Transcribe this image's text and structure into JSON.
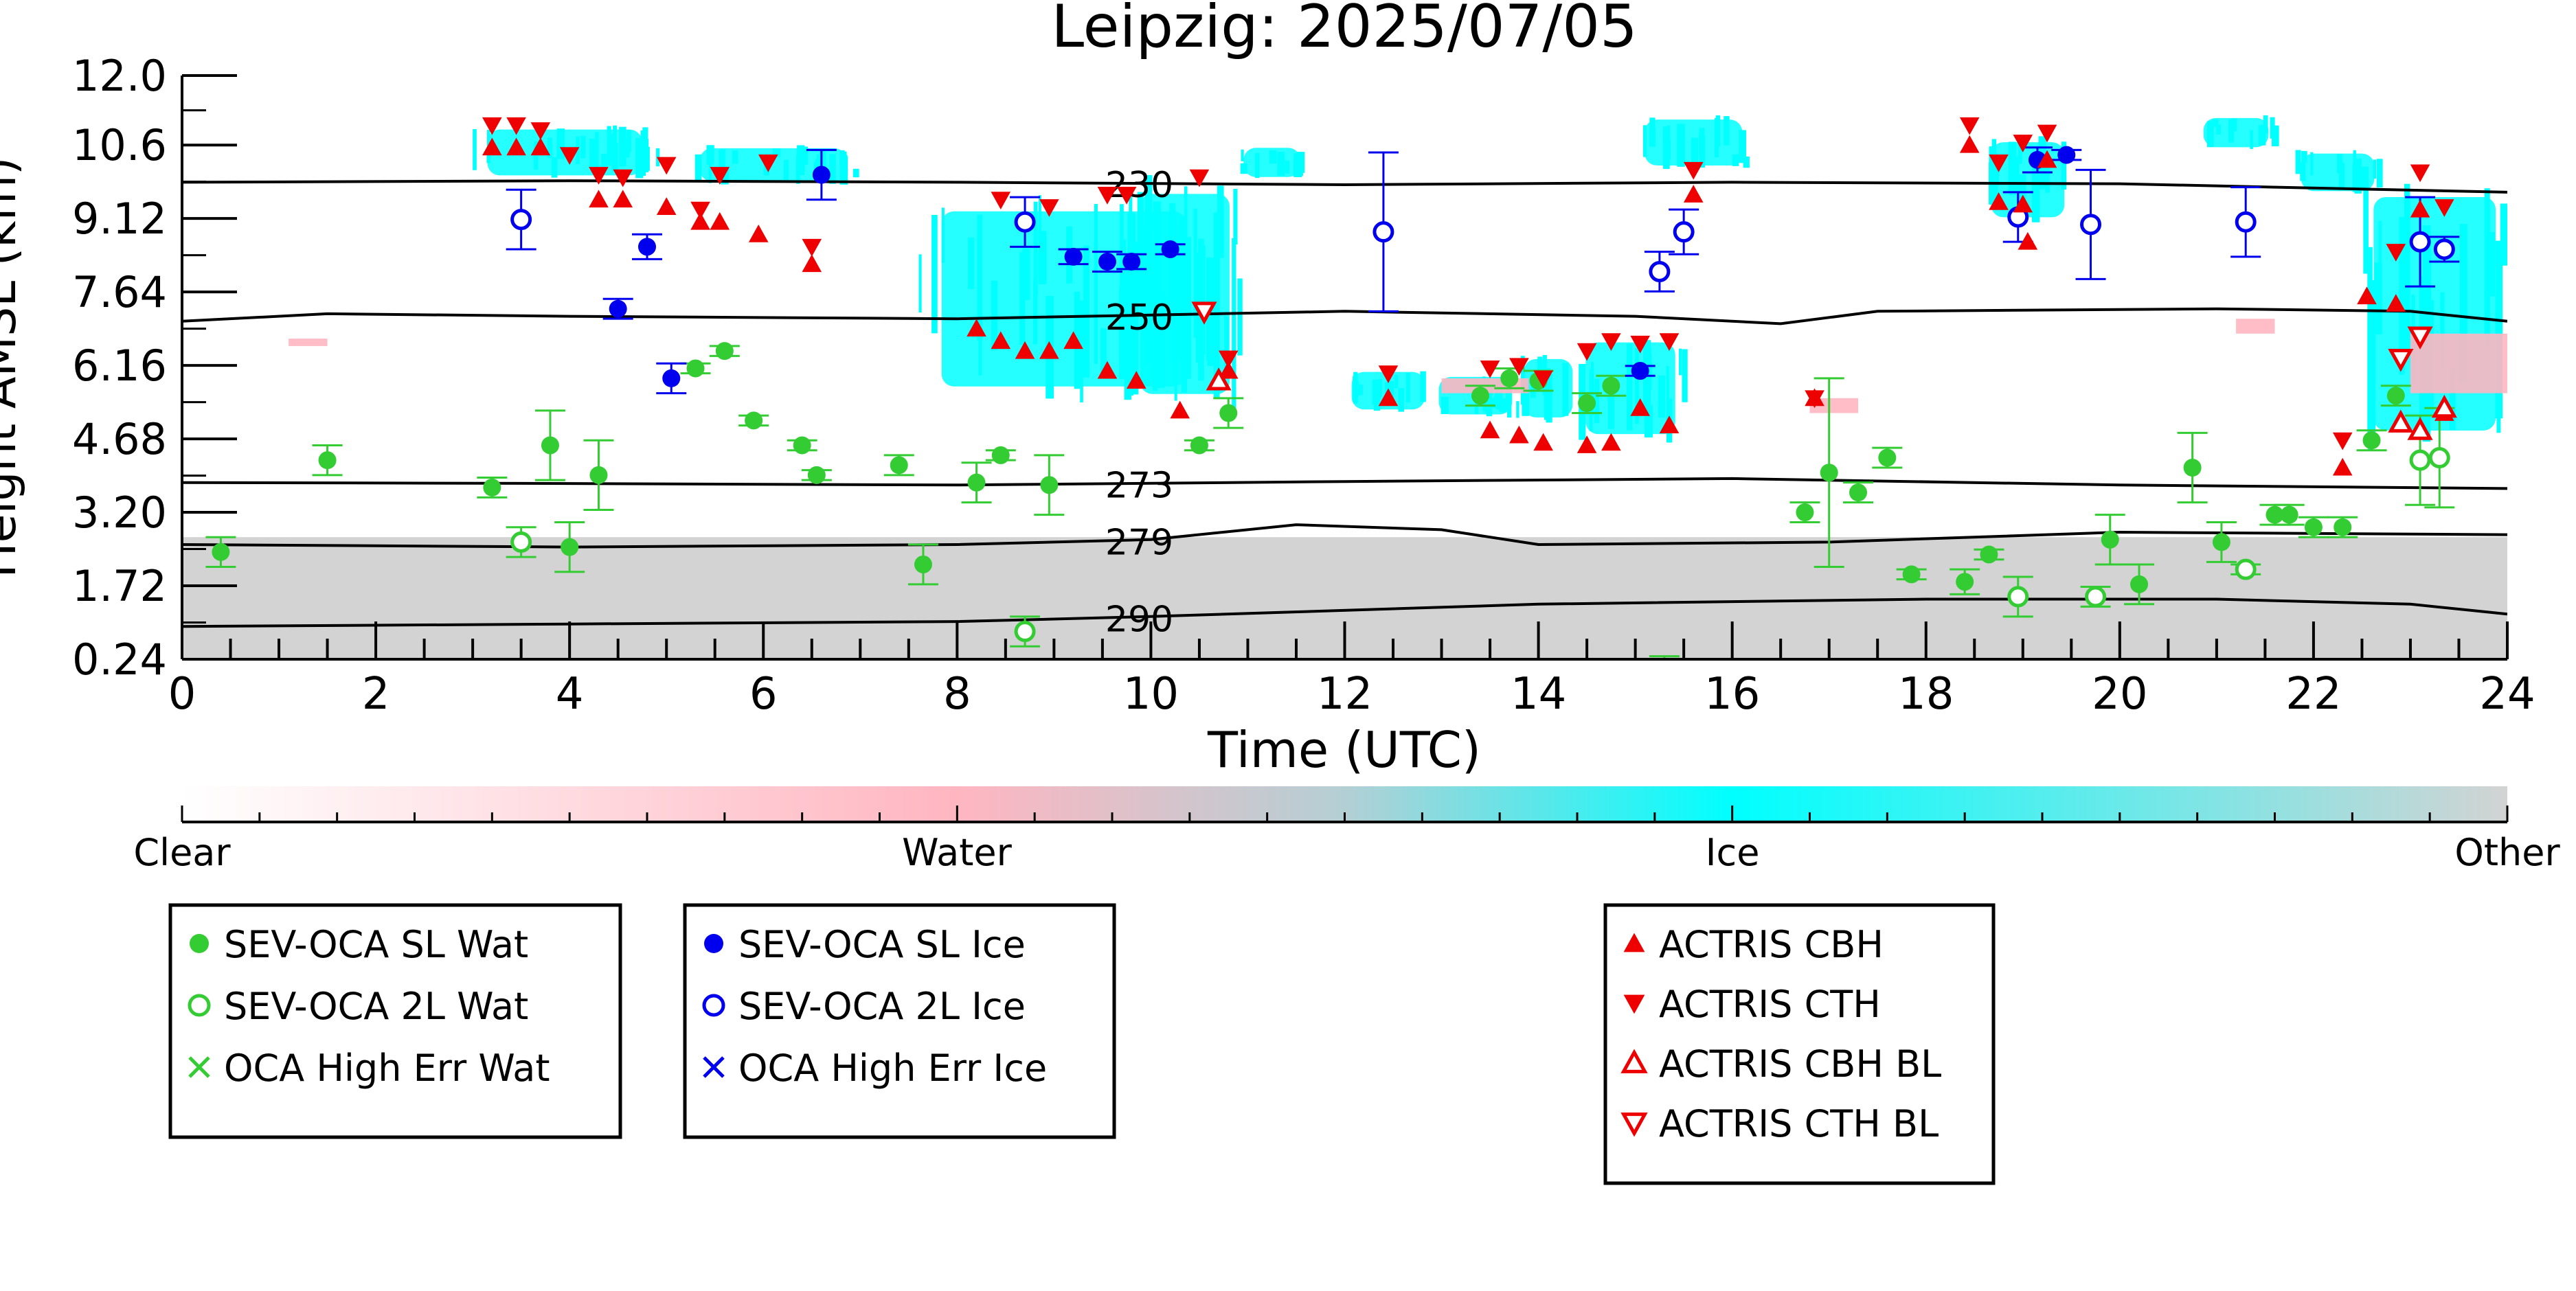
{
  "chart_data": {
    "type": "scatter",
    "title": "Leipzig: 2025/07/05",
    "xlabel": "Time (UTC)",
    "ylabel": "Height AMSL (km)",
    "xlim": [
      0,
      24
    ],
    "ylim": [
      0.24,
      12.0
    ],
    "x_ticks": [
      0,
      2,
      4,
      6,
      8,
      10,
      12,
      14,
      16,
      18,
      20,
      22,
      24
    ],
    "y_ticks": [
      0.24,
      1.72,
      3.2,
      4.68,
      6.16,
      7.64,
      9.12,
      10.6,
      12.0
    ],
    "y_tick_labels": [
      "0.24",
      "1.72",
      "3.20",
      "4.68",
      "6.16",
      "7.64",
      "9.12",
      "10.6",
      "12.0"
    ],
    "grid": false,
    "isotherms": [
      {
        "label": "230",
        "label_x": 9.5,
        "points": [
          [
            0,
            9.85
          ],
          [
            4,
            9.88
          ],
          [
            8,
            9.85
          ],
          [
            12,
            9.8
          ],
          [
            16,
            9.85
          ],
          [
            20,
            9.82
          ],
          [
            24,
            9.65
          ]
        ]
      },
      {
        "label": "250",
        "label_x": 9.5,
        "points": [
          [
            0,
            7.05
          ],
          [
            1.5,
            7.2
          ],
          [
            4,
            7.15
          ],
          [
            8,
            7.1
          ],
          [
            12,
            7.25
          ],
          [
            15,
            7.15
          ],
          [
            16.5,
            7.0
          ],
          [
            17.5,
            7.25
          ],
          [
            21,
            7.3
          ],
          [
            23,
            7.25
          ],
          [
            24,
            7.05
          ]
        ]
      },
      {
        "label": "273",
        "label_x": 9.5,
        "points": [
          [
            0,
            3.8
          ],
          [
            4,
            3.78
          ],
          [
            8,
            3.75
          ],
          [
            12,
            3.82
          ],
          [
            16,
            3.88
          ],
          [
            20,
            3.75
          ],
          [
            24,
            3.68
          ]
        ]
      },
      {
        "label": "279",
        "label_x": 9.5,
        "points": [
          [
            0,
            2.55
          ],
          [
            4,
            2.5
          ],
          [
            8,
            2.55
          ],
          [
            10,
            2.65
          ],
          [
            11.5,
            2.95
          ],
          [
            13,
            2.85
          ],
          [
            14,
            2.55
          ],
          [
            17,
            2.6
          ],
          [
            20,
            2.8
          ],
          [
            24,
            2.75
          ]
        ]
      },
      {
        "label": "290",
        "label_x": 9.5,
        "points": [
          [
            0,
            0.9
          ],
          [
            4,
            0.95
          ],
          [
            8,
            1.0
          ],
          [
            10,
            1.1
          ],
          [
            14,
            1.35
          ],
          [
            18,
            1.45
          ],
          [
            21,
            1.45
          ],
          [
            23,
            1.35
          ],
          [
            24,
            1.15
          ]
        ]
      }
    ],
    "series": [
      {
        "name": "SEV-OCA SL Wat",
        "marker": "filled-circle",
        "color": "#33cc33",
        "points": [
          [
            0.4,
            2.4,
            0.3
          ],
          [
            1.5,
            4.25,
            0.3
          ],
          [
            3.2,
            3.7,
            0.2
          ],
          [
            3.8,
            4.55,
            0.7
          ],
          [
            4.0,
            2.5,
            0.5
          ],
          [
            4.3,
            3.95,
            0.7
          ],
          [
            5.3,
            6.1,
            0.1
          ],
          [
            5.6,
            6.45,
            0.1
          ],
          [
            5.9,
            5.05,
            0.1
          ],
          [
            6.4,
            4.55,
            0.1
          ],
          [
            6.55,
            3.95,
            0.1
          ],
          [
            7.4,
            4.15,
            0.2
          ],
          [
            7.65,
            2.15,
            0.4
          ],
          [
            8.2,
            3.8,
            0.4
          ],
          [
            8.45,
            4.35,
            0.1
          ],
          [
            8.95,
            3.75,
            0.6
          ],
          [
            10.5,
            4.55,
            0.1
          ],
          [
            10.8,
            5.2,
            0.3
          ],
          [
            13.4,
            5.55,
            0.2
          ],
          [
            13.7,
            5.9,
            0.2
          ],
          [
            14.0,
            5.85,
            0.2
          ],
          [
            14.5,
            5.4,
            0.2
          ],
          [
            14.75,
            5.75,
            0.2
          ],
          [
            16.75,
            3.2,
            0.2
          ],
          [
            17.0,
            4.0,
            1.9
          ],
          [
            17.3,
            3.6,
            0.2
          ],
          [
            17.6,
            4.3,
            0.2
          ],
          [
            17.85,
            1.95,
            0.1
          ],
          [
            18.4,
            1.8,
            0.25
          ],
          [
            18.65,
            2.35,
            0.1
          ],
          [
            19.9,
            2.65,
            0.5
          ],
          [
            20.2,
            1.75,
            0.4
          ],
          [
            20.75,
            4.1,
            0.7
          ],
          [
            21.05,
            2.6,
            0.4
          ],
          [
            21.6,
            3.15,
            0.2
          ],
          [
            21.75,
            3.15,
            0.2
          ],
          [
            22.0,
            2.9,
            0.2
          ],
          [
            22.3,
            2.9,
            0.2
          ],
          [
            22.6,
            4.65,
            0.2
          ],
          [
            22.85,
            5.55,
            0.2
          ]
        ]
      },
      {
        "name": "SEV-OCA 2L Wat",
        "marker": "open-circle",
        "color": "#33cc33",
        "points": [
          [
            3.5,
            2.6,
            0.3
          ],
          [
            8.7,
            0.8,
            0.3
          ],
          [
            15.3,
            0.1,
            0.2
          ],
          [
            18.95,
            1.5,
            0.4
          ],
          [
            19.75,
            1.5,
            0.2
          ],
          [
            21.3,
            2.05,
            0.1
          ],
          [
            23.1,
            4.25,
            0.9
          ],
          [
            23.3,
            4.3,
            1.0
          ]
        ]
      },
      {
        "name": "OCA High Err Wat",
        "marker": "x",
        "color": "#33cc33",
        "points": []
      },
      {
        "name": "SEV-OCA SL Ice",
        "marker": "filled-circle",
        "color": "#0000ee",
        "points": [
          [
            4.5,
            7.3,
            0.2
          ],
          [
            4.8,
            8.55,
            0.25
          ],
          [
            5.05,
            5.9,
            0.3
          ],
          [
            6.6,
            10.0,
            0.5
          ],
          [
            9.2,
            8.35,
            0.15
          ],
          [
            9.55,
            8.25,
            0.2
          ],
          [
            9.8,
            8.25,
            0.15
          ],
          [
            10.2,
            8.5,
            0.1
          ],
          [
            15.05,
            6.05,
            0.1
          ],
          [
            19.15,
            10.3,
            0.25
          ],
          [
            19.45,
            10.4,
            0.1
          ]
        ]
      },
      {
        "name": "SEV-OCA 2L Ice",
        "marker": "open-circle",
        "color": "#0000ee",
        "points": [
          [
            3.5,
            9.1,
            0.6
          ],
          [
            8.7,
            9.05,
            0.5
          ],
          [
            12.4,
            8.85,
            1.6
          ],
          [
            15.25,
            8.05,
            0.4
          ],
          [
            15.5,
            8.85,
            0.45
          ],
          [
            18.95,
            9.15,
            0.5
          ],
          [
            19.7,
            9.0,
            1.1
          ],
          [
            21.3,
            9.05,
            0.7
          ],
          [
            23.1,
            8.65,
            0.9
          ],
          [
            23.35,
            8.5,
            0.25
          ]
        ]
      },
      {
        "name": "OCA High Err Ice",
        "marker": "x",
        "color": "#0000ee",
        "points": []
      },
      {
        "name": "ACTRIS CBH",
        "marker": "triangle-up",
        "color": "#ee0000",
        "points": [
          [
            3.2,
            10.55
          ],
          [
            3.45,
            10.55
          ],
          [
            3.7,
            10.55
          ],
          [
            4.3,
            9.5
          ],
          [
            4.55,
            9.5
          ],
          [
            5.0,
            9.35
          ],
          [
            5.35,
            9.05
          ],
          [
            5.55,
            9.05
          ],
          [
            5.95,
            8.8
          ],
          [
            6.5,
            8.2
          ],
          [
            8.2,
            6.9
          ],
          [
            8.45,
            6.65
          ],
          [
            8.7,
            6.45
          ],
          [
            8.95,
            6.45
          ],
          [
            9.2,
            6.65
          ],
          [
            9.55,
            6.05
          ],
          [
            9.85,
            5.85
          ],
          [
            10.3,
            5.25
          ],
          [
            10.8,
            6.05
          ],
          [
            12.45,
            5.5
          ],
          [
            13.5,
            4.85
          ],
          [
            13.8,
            4.75
          ],
          [
            14.05,
            4.6
          ],
          [
            14.5,
            4.55
          ],
          [
            14.75,
            4.6
          ],
          [
            15.05,
            5.3
          ],
          [
            15.35,
            4.95
          ],
          [
            15.6,
            9.6
          ],
          [
            16.85,
            5.5
          ],
          [
            18.45,
            10.6
          ],
          [
            18.75,
            9.45
          ],
          [
            19.0,
            9.4
          ],
          [
            19.05,
            8.65
          ],
          [
            19.25,
            10.3
          ],
          [
            22.3,
            4.1
          ],
          [
            22.55,
            7.55
          ],
          [
            22.85,
            7.4
          ],
          [
            23.1,
            9.3
          ],
          [
            23.35,
            5.2
          ]
        ]
      },
      {
        "name": "ACTRIS CTH",
        "marker": "triangle-down",
        "color": "#ee0000",
        "points": [
          [
            3.2,
            11.0
          ],
          [
            3.45,
            11.0
          ],
          [
            3.7,
            10.9
          ],
          [
            4.0,
            10.4
          ],
          [
            4.3,
            10.0
          ],
          [
            4.55,
            9.95
          ],
          [
            5.0,
            10.2
          ],
          [
            5.35,
            9.3
          ],
          [
            5.55,
            10.0
          ],
          [
            6.05,
            10.25
          ],
          [
            6.5,
            8.55
          ],
          [
            8.45,
            9.5
          ],
          [
            8.95,
            9.35
          ],
          [
            9.55,
            9.6
          ],
          [
            9.75,
            9.6
          ],
          [
            10.5,
            9.95
          ],
          [
            10.8,
            6.3
          ],
          [
            12.45,
            6.0
          ],
          [
            13.5,
            6.1
          ],
          [
            13.8,
            6.15
          ],
          [
            14.05,
            5.9
          ],
          [
            14.5,
            6.45
          ],
          [
            14.75,
            6.65
          ],
          [
            15.05,
            6.6
          ],
          [
            15.35,
            6.65
          ],
          [
            15.6,
            10.1
          ],
          [
            16.85,
            5.5
          ],
          [
            18.45,
            11.0
          ],
          [
            18.75,
            10.25
          ],
          [
            19.0,
            10.65
          ],
          [
            19.25,
            10.85
          ],
          [
            22.3,
            4.65
          ],
          [
            22.85,
            8.45
          ],
          [
            23.1,
            10.05
          ],
          [
            23.35,
            9.35
          ]
        ]
      },
      {
        "name": "ACTRIS CBH BL",
        "marker": "open-triangle-up",
        "color": "#ee0000",
        "points": [
          [
            10.7,
            5.85
          ],
          [
            22.9,
            5.0
          ],
          [
            23.1,
            4.85
          ],
          [
            23.35,
            5.3
          ]
        ]
      },
      {
        "name": "ACTRIS CTH BL",
        "marker": "open-triangle-down",
        "color": "#ee0000",
        "points": [
          [
            10.55,
            7.25
          ],
          [
            22.9,
            6.3
          ],
          [
            23.1,
            6.75
          ]
        ]
      }
    ],
    "legends": [
      [
        "SEV-OCA SL Wat",
        "SEV-OCA 2L Wat",
        "OCA High Err Wat"
      ],
      [
        "SEV-OCA SL Ice",
        "SEV-OCA 2L Ice",
        "OCA High Err Ice"
      ],
      [
        "ACTRIS CBH",
        "ACTRIS CTH",
        "ACTRIS CBH BL",
        "ACTRIS CTH BL"
      ]
    ],
    "colorbar": {
      "labels": [
        "Clear",
        "Water",
        "Ice",
        "Other"
      ],
      "colors": {
        "clear": "#ffffff",
        "water": "#ffb6c1",
        "ice": "#00ffff",
        "other": "#d3d3d3"
      }
    },
    "ice_regions": [
      {
        "t": [
          3.0,
          4.9
        ],
        "h": [
          9.9,
          11.0
        ]
      },
      {
        "t": [
          5.2,
          7.0
        ],
        "h": [
          9.8,
          10.6
        ]
      },
      {
        "t": [
          7.6,
          10.6
        ],
        "h": [
          5.4,
          9.6
        ]
      },
      {
        "t": [
          9.8,
          10.9
        ],
        "h": [
          5.2,
          10.0
        ]
      },
      {
        "t": [
          10.9,
          11.6
        ],
        "h": [
          9.9,
          10.6
        ]
      },
      {
        "t": [
          12.0,
          12.9
        ],
        "h": [
          5.2,
          6.1
        ]
      },
      {
        "t": [
          12.9,
          13.8
        ],
        "h": [
          5.1,
          6.0
        ]
      },
      {
        "t": [
          13.8,
          14.4
        ],
        "h": [
          5.0,
          6.4
        ]
      },
      {
        "t": [
          14.4,
          15.5
        ],
        "h": [
          4.6,
          6.8
        ]
      },
      {
        "t": [
          15.0,
          16.2
        ],
        "h": [
          10.1,
          11.2
        ]
      },
      {
        "t": [
          18.6,
          19.5
        ],
        "h": [
          9.0,
          10.8
        ]
      },
      {
        "t": [
          20.8,
          21.6
        ],
        "h": [
          10.5,
          11.2
        ]
      },
      {
        "t": [
          21.8,
          22.7
        ],
        "h": [
          9.6,
          10.5
        ]
      },
      {
        "t": [
          22.5,
          24.0
        ],
        "h": [
          4.4,
          10.0
        ]
      }
    ],
    "water_regions": [
      {
        "t": [
          1.1,
          1.5
        ],
        "h": [
          6.55,
          6.7
        ]
      },
      {
        "t": [
          13.0,
          13.9
        ],
        "h": [
          5.6,
          5.9
        ]
      },
      {
        "t": [
          16.8,
          17.3
        ],
        "h": [
          5.2,
          5.5
        ]
      },
      {
        "t": [
          21.2,
          21.6
        ],
        "h": [
          6.8,
          7.1
        ]
      },
      {
        "t": [
          23.0,
          24.0
        ],
        "h": [
          5.6,
          6.8
        ]
      }
    ],
    "other_region": {
      "t": [
        0,
        24
      ],
      "h": [
        0.24,
        2.7
      ]
    }
  }
}
